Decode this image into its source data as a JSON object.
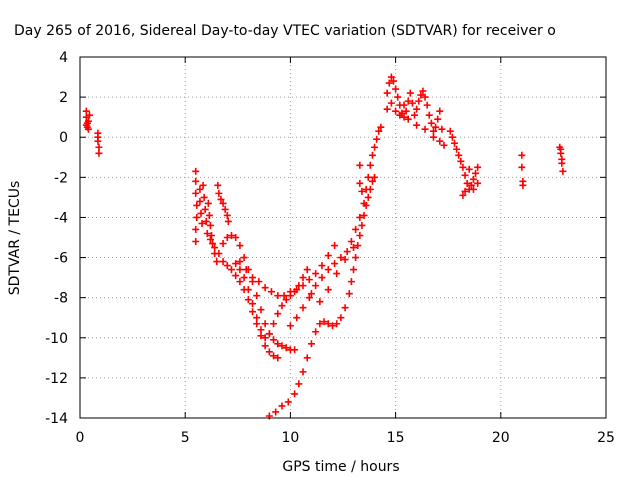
{
  "chart_data": {
    "type": "scatter",
    "title": "Day 265 of 2016, Sidereal Day-to-day VTEC variation (SDTVAR) for receiver o",
    "xlabel": "GPS time / hours",
    "ylabel": "SDTVAR / TECUs",
    "xlim": [
      0,
      25
    ],
    "ylim": [
      -14,
      4
    ],
    "xticks": [
      0,
      5,
      10,
      15,
      20,
      25
    ],
    "yticks": [
      -14,
      -12,
      -10,
      -8,
      -6,
      -4,
      -2,
      0,
      2,
      4
    ],
    "grid": true,
    "marker": "+",
    "series": [
      {
        "name": "SDTVAR",
        "color": "#ff0000",
        "points": [
          [
            0.3,
            1.3
          ],
          [
            0.3,
            1.0
          ],
          [
            0.35,
            0.7
          ],
          [
            0.35,
            0.5
          ],
          [
            0.4,
            0.8
          ],
          [
            0.4,
            0.4
          ],
          [
            0.3,
            0.6
          ],
          [
            0.45,
            1.1
          ],
          [
            0.85,
            0.2
          ],
          [
            0.85,
            -0.2
          ],
          [
            0.9,
            -0.5
          ],
          [
            0.9,
            -0.8
          ],
          [
            0.85,
            0.0
          ],
          [
            5.5,
            -1.7
          ],
          [
            5.5,
            -2.2
          ],
          [
            5.5,
            -2.8
          ],
          [
            5.55,
            -3.4
          ],
          [
            5.55,
            -4.0
          ],
          [
            5.5,
            -4.6
          ],
          [
            5.5,
            -5.2
          ],
          [
            5.7,
            -2.6
          ],
          [
            5.7,
            -3.2
          ],
          [
            5.75,
            -3.8
          ],
          [
            5.8,
            -4.3
          ],
          [
            5.85,
            -2.4
          ],
          [
            5.9,
            -3.0
          ],
          [
            5.95,
            -3.6
          ],
          [
            6.0,
            -4.2
          ],
          [
            6.05,
            -4.8
          ],
          [
            6.1,
            -3.3
          ],
          [
            6.15,
            -3.9
          ],
          [
            6.2,
            -4.4
          ],
          [
            6.25,
            -4.9
          ],
          [
            6.3,
            -5.3
          ],
          [
            6.4,
            -5.8
          ],
          [
            6.5,
            -6.2
          ],
          [
            6.55,
            -2.4
          ],
          [
            6.6,
            -2.8
          ],
          [
            6.7,
            -3.1
          ],
          [
            6.8,
            -3.3
          ],
          [
            6.9,
            -3.6
          ],
          [
            7.0,
            -3.9
          ],
          [
            7.05,
            -4.2
          ],
          [
            6.2,
            -5.1
          ],
          [
            6.4,
            -5.5
          ],
          [
            6.6,
            -5.8
          ],
          [
            6.8,
            -6.2
          ],
          [
            7.0,
            -6.4
          ],
          [
            7.2,
            -6.6
          ],
          [
            7.4,
            -6.9
          ],
          [
            7.6,
            -7.2
          ],
          [
            7.8,
            -7.6
          ],
          [
            8.0,
            -8.1
          ],
          [
            8.2,
            -8.7
          ],
          [
            8.4,
            -9.3
          ],
          [
            8.6,
            -9.9
          ],
          [
            8.8,
            -10.4
          ],
          [
            9.0,
            -10.7
          ],
          [
            9.2,
            -10.9
          ],
          [
            9.4,
            -11.0
          ],
          [
            6.8,
            -5.3
          ],
          [
            7.0,
            -5.0
          ],
          [
            7.2,
            -4.9
          ],
          [
            7.4,
            -5.0
          ],
          [
            7.6,
            -5.4
          ],
          [
            7.8,
            -6.0
          ],
          [
            8.0,
            -6.6
          ],
          [
            8.2,
            -7.2
          ],
          [
            8.4,
            -7.9
          ],
          [
            8.6,
            -8.6
          ],
          [
            8.8,
            -9.3
          ],
          [
            9.0,
            -9.8
          ],
          [
            9.2,
            -10.1
          ],
          [
            9.4,
            -10.3
          ],
          [
            9.6,
            -10.4
          ],
          [
            9.8,
            -10.5
          ],
          [
            10.0,
            -10.6
          ],
          [
            10.2,
            -10.6
          ],
          [
            7.4,
            -6.3
          ],
          [
            7.6,
            -6.6
          ],
          [
            7.8,
            -7.0
          ],
          [
            8.0,
            -7.6
          ],
          [
            8.2,
            -8.3
          ],
          [
            8.4,
            -9.0
          ],
          [
            8.6,
            -9.6
          ],
          [
            8.8,
            -10.0
          ],
          [
            9.0,
            -9.8
          ],
          [
            9.2,
            -9.3
          ],
          [
            9.4,
            -8.8
          ],
          [
            9.6,
            -8.4
          ],
          [
            9.8,
            -8.1
          ],
          [
            10.0,
            -7.9
          ],
          [
            10.2,
            -7.7
          ],
          [
            10.4,
            -7.4
          ],
          [
            10.6,
            -7.0
          ],
          [
            7.6,
            -6.2
          ],
          [
            7.9,
            -6.6
          ],
          [
            8.2,
            -7.0
          ],
          [
            8.5,
            -7.2
          ],
          [
            8.8,
            -7.5
          ],
          [
            9.1,
            -7.7
          ],
          [
            9.4,
            -7.9
          ],
          [
            9.7,
            -7.9
          ],
          [
            10.0,
            -7.7
          ],
          [
            10.3,
            -7.6
          ],
          [
            10.6,
            -7.4
          ],
          [
            10.9,
            -7.1
          ],
          [
            11.2,
            -6.8
          ],
          [
            11.5,
            -6.4
          ],
          [
            11.8,
            -5.9
          ],
          [
            12.1,
            -5.4
          ],
          [
            9.0,
            -13.9
          ],
          [
            9.3,
            -13.7
          ],
          [
            9.6,
            -13.4
          ],
          [
            9.9,
            -13.2
          ],
          [
            10.2,
            -12.8
          ],
          [
            10.4,
            -12.3
          ],
          [
            10.6,
            -11.7
          ],
          [
            10.8,
            -11.0
          ],
          [
            11.0,
            -10.3
          ],
          [
            11.2,
            -9.7
          ],
          [
            11.4,
            -9.3
          ],
          [
            11.6,
            -9.2
          ],
          [
            11.8,
            -9.3
          ],
          [
            12.0,
            -9.4
          ],
          [
            12.2,
            -9.3
          ],
          [
            12.4,
            -9.0
          ],
          [
            12.6,
            -8.5
          ],
          [
            12.8,
            -7.8
          ],
          [
            12.9,
            -7.2
          ],
          [
            13.0,
            -6.6
          ],
          [
            13.1,
            -6.0
          ],
          [
            13.2,
            -5.4
          ],
          [
            13.3,
            -4.9
          ],
          [
            13.4,
            -4.4
          ],
          [
            13.5,
            -3.9
          ],
          [
            13.6,
            -3.4
          ],
          [
            13.7,
            -3.0
          ],
          [
            13.8,
            -2.6
          ],
          [
            13.9,
            -2.2
          ],
          [
            14.0,
            -2.0
          ],
          [
            10.0,
            -9.4
          ],
          [
            10.3,
            -9.0
          ],
          [
            10.6,
            -8.5
          ],
          [
            10.9,
            -8.0
          ],
          [
            11.2,
            -7.4
          ],
          [
            11.5,
            -7.0
          ],
          [
            11.8,
            -6.6
          ],
          [
            12.1,
            -6.3
          ],
          [
            12.4,
            -6.0
          ],
          [
            12.7,
            -5.7
          ],
          [
            12.9,
            -5.2
          ],
          [
            13.1,
            -4.6
          ],
          [
            13.3,
            -4.0
          ],
          [
            13.5,
            -3.3
          ],
          [
            13.6,
            -2.6
          ],
          [
            13.7,
            -2.0
          ],
          [
            13.8,
            -1.4
          ],
          [
            13.9,
            -0.9
          ],
          [
            14.0,
            -0.5
          ],
          [
            14.1,
            -0.1
          ],
          [
            14.2,
            0.3
          ],
          [
            14.3,
            0.5
          ],
          [
            10.8,
            -6.6
          ],
          [
            11.0,
            -7.8
          ],
          [
            11.4,
            -8.2
          ],
          [
            11.8,
            -7.6
          ],
          [
            12.2,
            -6.8
          ],
          [
            12.6,
            -6.1
          ],
          [
            13.0,
            -5.5
          ],
          [
            13.3,
            -1.4
          ],
          [
            13.3,
            -2.3
          ],
          [
            13.4,
            -2.7
          ],
          [
            14.6,
            2.2
          ],
          [
            14.7,
            2.7
          ],
          [
            14.8,
            3.0
          ],
          [
            14.9,
            2.8
          ],
          [
            15.0,
            2.4
          ],
          [
            15.1,
            2.0
          ],
          [
            15.2,
            1.6
          ],
          [
            15.3,
            1.2
          ],
          [
            15.4,
            1.0
          ],
          [
            15.5,
            1.3
          ],
          [
            15.6,
            1.8
          ],
          [
            15.7,
            2.2
          ],
          [
            15.8,
            1.7
          ],
          [
            15.9,
            1.1
          ],
          [
            16.0,
            1.4
          ],
          [
            16.1,
            1.8
          ],
          [
            16.2,
            2.1
          ],
          [
            16.3,
            2.3
          ],
          [
            16.4,
            2.0
          ],
          [
            16.5,
            1.6
          ],
          [
            16.6,
            1.1
          ],
          [
            16.7,
            0.7
          ],
          [
            16.8,
            0.3
          ],
          [
            16.9,
            0.5
          ],
          [
            17.0,
            0.9
          ],
          [
            17.1,
            1.3
          ],
          [
            17.2,
            0.4
          ],
          [
            17.3,
            -0.4
          ],
          [
            14.6,
            1.4
          ],
          [
            14.8,
            1.7
          ],
          [
            15.0,
            1.3
          ],
          [
            15.2,
            1.1
          ],
          [
            15.4,
            1.6
          ],
          [
            15.6,
            0.9
          ],
          [
            16.0,
            0.6
          ],
          [
            16.4,
            0.4
          ],
          [
            16.8,
            0.0
          ],
          [
            17.1,
            -0.2
          ],
          [
            17.6,
            0.3
          ],
          [
            17.7,
            0.0
          ],
          [
            17.8,
            -0.3
          ],
          [
            17.9,
            -0.6
          ],
          [
            18.0,
            -0.9
          ],
          [
            18.1,
            -1.2
          ],
          [
            18.2,
            -1.5
          ],
          [
            18.3,
            -1.9
          ],
          [
            18.4,
            -2.3
          ],
          [
            18.5,
            -2.6
          ],
          [
            18.6,
            -2.4
          ],
          [
            18.7,
            -2.1
          ],
          [
            18.8,
            -1.8
          ],
          [
            18.9,
            -1.5
          ],
          [
            18.3,
            -2.7
          ],
          [
            18.2,
            -2.9
          ],
          [
            18.5,
            -1.6
          ],
          [
            18.7,
            -2.6
          ],
          [
            18.9,
            -2.3
          ],
          [
            21.0,
            -0.9
          ],
          [
            21.0,
            -1.5
          ],
          [
            21.05,
            -2.2
          ],
          [
            21.05,
            -2.4
          ],
          [
            22.8,
            -0.5
          ],
          [
            22.85,
            -0.8
          ],
          [
            22.9,
            -1.1
          ],
          [
            22.85,
            -0.6
          ],
          [
            22.9,
            -1.3
          ],
          [
            22.95,
            -1.7
          ]
        ]
      }
    ]
  }
}
